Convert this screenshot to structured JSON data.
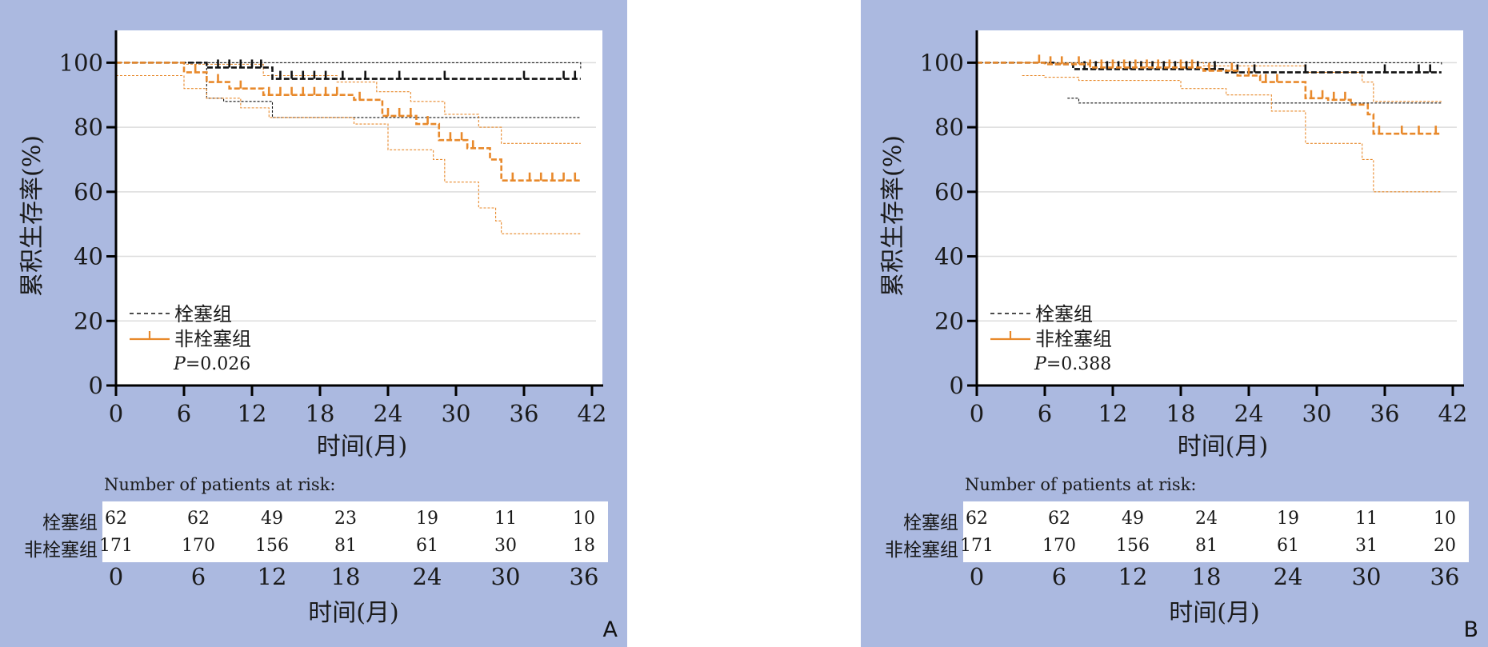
{
  "colors": {
    "panel_bg": "#abb9e0",
    "plot_bg": "#ffffff",
    "group_embolism": "#111111",
    "group_non_embolism": "#e8892b",
    "grid": "#dcdcdc"
  },
  "chart_data": [
    {
      "type": "line",
      "panel_label": "A",
      "ylabel": "累积生存率(%)",
      "xlabel": "时间(月)",
      "x_ticks": [
        "0",
        "6",
        "12",
        "18",
        "24",
        "30",
        "36",
        "42"
      ],
      "y_ticks": [
        "0",
        "20",
        "40",
        "60",
        "80",
        "100"
      ],
      "xlim": [
        0,
        42
      ],
      "ylim": [
        0,
        110
      ],
      "grid": true,
      "legend": {
        "position": "bottom-left",
        "entries": [
          "栓塞组",
          "非栓塞组"
        ]
      },
      "p_value": {
        "label": "P",
        "text": "=0.026"
      },
      "series": [
        {
          "name": "栓塞组",
          "style": "dashed-black",
          "steps": [
            [
              0,
              100
            ],
            [
              8,
              98.5
            ],
            [
              13.8,
              95
            ],
            [
              41,
              95
            ]
          ],
          "ci_upper": [
            [
              0,
              100
            ],
            [
              41,
              98
            ]
          ],
          "ci_lower": [
            [
              0,
              100
            ],
            [
              8,
              89
            ],
            [
              9.5,
              88
            ],
            [
              13.8,
              83
            ],
            [
              41,
              83
            ]
          ],
          "censor": [
            9,
            10,
            11,
            12,
            12.8,
            14.5,
            15.5,
            16.5,
            17.5,
            18.5,
            20,
            22,
            25,
            29,
            36,
            39.5,
            40.5
          ]
        },
        {
          "name": "非栓塞组",
          "style": "dashed-orange",
          "steps": [
            [
              0,
              100
            ],
            [
              6,
              97
            ],
            [
              8,
              94
            ],
            [
              10,
              92
            ],
            [
              13,
              90
            ],
            [
              21,
              88.5
            ],
            [
              23.5,
              83.5
            ],
            [
              26.5,
              81
            ],
            [
              28.5,
              76
            ],
            [
              31,
              73.5
            ],
            [
              33,
              70
            ],
            [
              34,
              63.5
            ],
            [
              41,
              63.5
            ]
          ],
          "ci_upper": [
            [
              0,
              100
            ],
            [
              6,
              99.5
            ],
            [
              13,
              96
            ],
            [
              19.5,
              94
            ],
            [
              23,
              91
            ],
            [
              26,
              88
            ],
            [
              29,
              84
            ],
            [
              32,
              80
            ],
            [
              34,
              75
            ],
            [
              41,
              75
            ]
          ],
          "ci_lower": [
            [
              0,
              96
            ],
            [
              6,
              92
            ],
            [
              8,
              89
            ],
            [
              11,
              86
            ],
            [
              13.5,
              83
            ],
            [
              21,
              81
            ],
            [
              24,
              73
            ],
            [
              28,
              70
            ],
            [
              29,
              63
            ],
            [
              32,
              55
            ],
            [
              33.5,
              51
            ],
            [
              34,
              47
            ],
            [
              41,
              47
            ]
          ],
          "censor": [
            7,
            9,
            11,
            13.5,
            14.5,
            15.5,
            16.5,
            17.5,
            18.5,
            19.5,
            21.5,
            24,
            25,
            26,
            27.5,
            29.5,
            30.5,
            31.5,
            35,
            36.5,
            37.5,
            38.5,
            39.5,
            40.5
          ]
        }
      ],
      "risk_table": {
        "title": "Number of patients at risk:",
        "time_ticks": [
          "0",
          "6",
          "12",
          "18",
          "24",
          "30",
          "36"
        ],
        "xlabel": "时间(月)",
        "rows": [
          {
            "name": "栓塞组",
            "values": [
              "62",
              "62",
              "49",
              "23",
              "19",
              "11",
              "10"
            ]
          },
          {
            "name": "非栓塞组",
            "values": [
              "171",
              "170",
              "156",
              "81",
              "61",
              "30",
              "18"
            ]
          }
        ]
      }
    },
    {
      "type": "line",
      "panel_label": "B",
      "ylabel": "累积生存率(%)",
      "xlabel": "时间(月)",
      "x_ticks": [
        "0",
        "6",
        "12",
        "18",
        "24",
        "30",
        "36",
        "42"
      ],
      "y_ticks": [
        "0",
        "20",
        "40",
        "60",
        "80",
        "100"
      ],
      "xlim": [
        0,
        42
      ],
      "ylim": [
        0,
        110
      ],
      "grid": true,
      "legend": {
        "position": "bottom-left",
        "entries": [
          "栓塞组",
          "非栓塞组"
        ]
      },
      "p_value": {
        "label": "P",
        "text": "=0.388"
      },
      "series": [
        {
          "name": "栓塞组",
          "style": "dashed-black",
          "steps": [
            [
              0,
              100
            ],
            [
              7,
              99.5
            ],
            [
              8.5,
              98
            ],
            [
              22,
              97
            ],
            [
              41,
              97
            ]
          ],
          "ci_upper": [
            [
              0,
              100
            ],
            [
              41,
              99
            ]
          ],
          "ci_lower": [
            [
              8,
              89
            ],
            [
              9,
              87.5
            ],
            [
              41,
              87.5
            ]
          ],
          "censor": [
            9.5,
            10.5,
            11.5,
            12.5,
            13.5,
            14.5,
            15.5,
            16.5,
            17.5,
            18.5,
            19.5,
            21,
            23,
            24.5,
            29,
            36,
            39,
            40
          ]
        },
        {
          "name": "非栓塞组",
          "style": "dashed-orange",
          "steps": [
            [
              0,
              100
            ],
            [
              6,
              99.5
            ],
            [
              10,
              98.5
            ],
            [
              20,
              97.5
            ],
            [
              23,
              96
            ],
            [
              25,
              94
            ],
            [
              29,
              89
            ],
            [
              31,
              88.5
            ],
            [
              33,
              87
            ],
            [
              34.5,
              84
            ],
            [
              35,
              78
            ],
            [
              41,
              78
            ]
          ],
          "ci_upper": [
            [
              4,
              100
            ],
            [
              20,
              99
            ],
            [
              29,
              97
            ],
            [
              34,
              94
            ],
            [
              35,
              88
            ],
            [
              41,
              88
            ]
          ],
          "ci_lower": [
            [
              4,
              96
            ],
            [
              6,
              95.5
            ],
            [
              9,
              94.5
            ],
            [
              18,
              92
            ],
            [
              22,
              90
            ],
            [
              26,
              85
            ],
            [
              29,
              75
            ],
            [
              34,
              70
            ],
            [
              35,
              60
            ],
            [
              41,
              60
            ]
          ],
          "censor": [
            5.5,
            6.5,
            7.5,
            9,
            10,
            11,
            12,
            13,
            14,
            15,
            16,
            17,
            18,
            19,
            20.5,
            22.5,
            24,
            25.5,
            26.5,
            29.5,
            30.5,
            31.5,
            32.5,
            35.5,
            37.5,
            39,
            40.5
          ]
        }
      ],
      "risk_table": {
        "title": "Number of patients at risk:",
        "time_ticks": [
          "0",
          "6",
          "12",
          "18",
          "24",
          "30",
          "36"
        ],
        "xlabel": "时间(月)",
        "rows": [
          {
            "name": "栓塞组",
            "values": [
              "62",
              "62",
              "49",
              "24",
              "19",
              "11",
              "10"
            ]
          },
          {
            "name": "非栓塞组",
            "values": [
              "171",
              "170",
              "156",
              "81",
              "61",
              "31",
              "20"
            ]
          }
        ]
      }
    }
  ]
}
